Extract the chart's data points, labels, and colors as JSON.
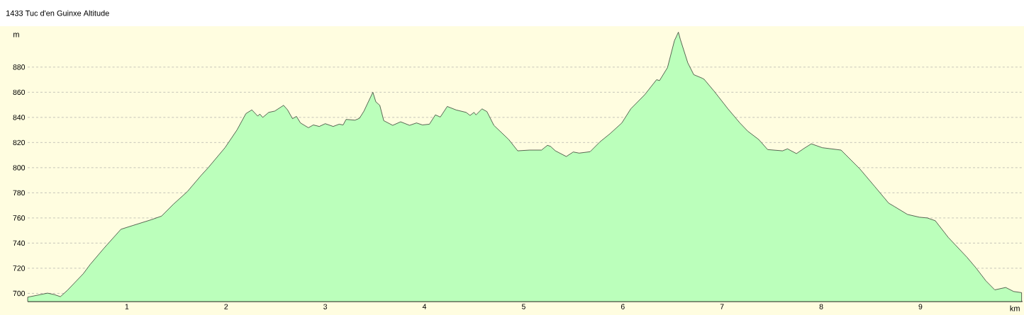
{
  "chart_data": {
    "type": "area",
    "title": "1433 Tuc d'en Guinxe Altitude",
    "xlabel": "km",
    "ylabel": "m",
    "x": [
      0,
      0.107,
      0.2,
      0.27,
      0.33,
      0.4,
      0.56,
      0.63,
      0.77,
      0.94,
      1.06,
      1.25,
      1.35,
      1.47,
      1.61,
      1.75,
      1.82,
      1.99,
      2.11,
      2.2,
      2.26,
      2.32,
      2.34,
      2.37,
      2.43,
      2.49,
      2.58,
      2.62,
      2.67,
      2.71,
      2.75,
      2.83,
      2.88,
      2.94,
      3.0,
      3.08,
      3.14,
      3.18,
      3.21,
      3.3,
      3.345,
      3.39,
      3.48,
      3.51,
      3.55,
      3.59,
      3.68,
      3.76,
      3.85,
      3.92,
      3.98,
      4.05,
      4.11,
      4.16,
      4.23,
      4.32,
      4.42,
      4.46,
      4.5,
      4.52,
      4.58,
      4.63,
      4.7,
      4.85,
      4.94,
      5.06,
      5.18,
      5.24,
      5.27,
      5.32,
      5.43,
      5.5,
      5.56,
      5.67,
      5.77,
      5.87,
      5.99,
      6.08,
      6.22,
      6.34,
      6.37,
      6.45,
      6.52,
      6.56,
      6.58,
      6.655,
      6.715,
      6.8,
      6.82,
      6.92,
      7.06,
      7.18,
      7.26,
      7.37,
      7.46,
      7.61,
      7.66,
      7.75,
      7.82,
      7.9,
      8.01,
      8.2,
      8.39,
      8.54,
      8.68,
      8.74,
      8.87,
      8.99,
      9.07,
      9.15,
      9.28,
      9.47,
      9.56,
      9.66,
      9.75,
      9.86,
      9.94,
      10.02
    ],
    "series": [
      {
        "color": "#bbffbb",
        "values": [
          697,
          698.7,
          700.2,
          699,
          697.4,
          702.4,
          715.6,
          723,
          736,
          751,
          754,
          758.7,
          761.5,
          771,
          781,
          794,
          800,
          816,
          830,
          843,
          846,
          841,
          842.7,
          840,
          844,
          845,
          849.6,
          846,
          839,
          840.8,
          835.6,
          831.8,
          834,
          832.8,
          835,
          832.8,
          834.6,
          834,
          838.4,
          837.8,
          839.3,
          845,
          860,
          852.4,
          849.6,
          837.4,
          833.7,
          836.5,
          833.7,
          835.6,
          834,
          834.6,
          842,
          840.3,
          848.7,
          845.9,
          844,
          841.6,
          844,
          842,
          846.8,
          844.6,
          833.7,
          822.4,
          813.4,
          814,
          814,
          817.8,
          817,
          813.4,
          808.9,
          812.5,
          811.6,
          812.7,
          820.6,
          827,
          835.6,
          846.8,
          858,
          870,
          869.3,
          879.6,
          901,
          907.8,
          902,
          883.4,
          874,
          871.2,
          870.3,
          860.9,
          846.8,
          835.6,
          829,
          822.4,
          814.4,
          813.4,
          815,
          811.2,
          815,
          819,
          815.9,
          814,
          799,
          785,
          771.8,
          769,
          762.8,
          760.6,
          760,
          757.8,
          744.6,
          728.7,
          720.3,
          710,
          702.8,
          704.7,
          701.5,
          700.6
        ]
      }
    ],
    "xlim": [
      0,
      10.03
    ],
    "ylim": [
      693.5,
      912
    ],
    "xticks": [
      1,
      2,
      3,
      4,
      5,
      6,
      7,
      8,
      9
    ],
    "yticks": [
      700,
      720,
      740,
      760,
      780,
      800,
      820,
      840,
      860,
      880
    ],
    "grid": "y"
  }
}
